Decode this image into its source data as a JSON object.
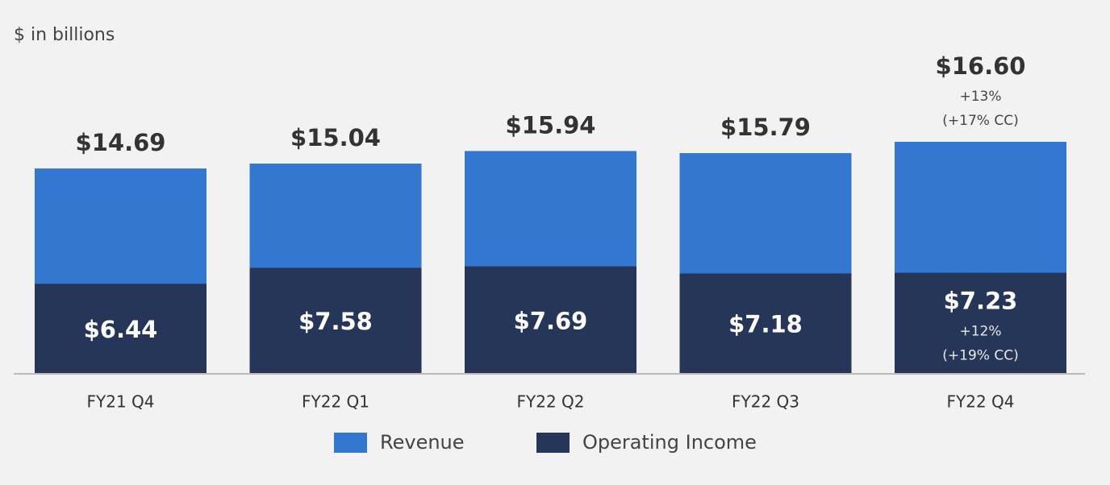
{
  "chart_data": {
    "type": "overlap-bar",
    "subtitle": "$ in billions",
    "categories": [
      "FY21 Q4",
      "FY22 Q1",
      "FY22 Q2",
      "FY22 Q3",
      "FY22 Q4"
    ],
    "series": [
      {
        "name": "Revenue",
        "color": "#3477d1",
        "values": [
          14.69,
          15.04,
          15.94,
          15.79,
          16.6
        ],
        "value_labels": [
          "$14.69",
          "$15.04",
          "$15.94",
          "$15.79",
          "$16.60"
        ],
        "value_notes": [
          null,
          null,
          null,
          null,
          [
            "+13%",
            "(+17% CC)"
          ]
        ]
      },
      {
        "name": "Operating Income",
        "color": "#263658",
        "values": [
          6.44,
          7.58,
          7.69,
          7.18,
          7.23
        ],
        "value_labels": [
          "$6.44",
          "$7.58",
          "$7.69",
          "$7.18",
          "$7.23"
        ],
        "value_notes": [
          null,
          null,
          null,
          null,
          [
            "+12%",
            "(+19% CC)"
          ]
        ]
      }
    ]
  }
}
